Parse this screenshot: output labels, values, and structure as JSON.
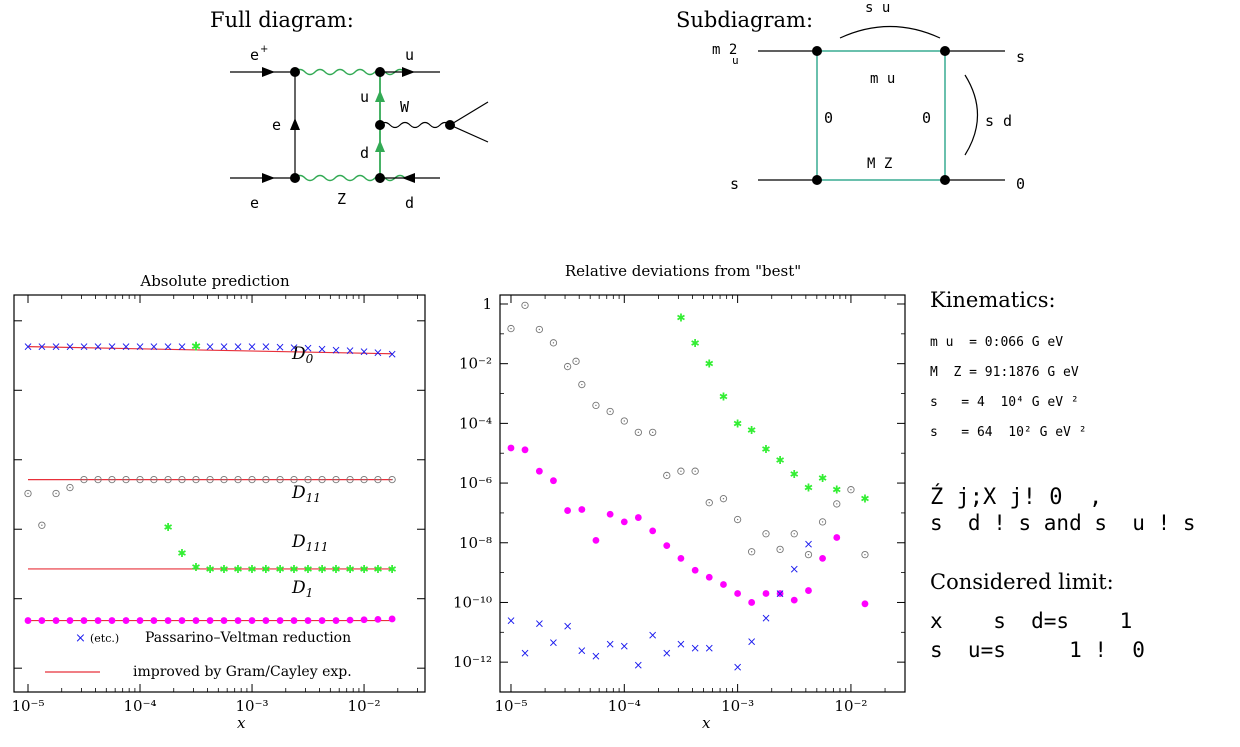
{
  "colors": {
    "green": "#33aa55",
    "magenta": "#ff00ff",
    "blue": "#1a1aee",
    "red": "#e8303a",
    "grey": "#777777",
    "lime": "#33ee33",
    "box": "#2aa58a"
  },
  "full_diagram": {
    "title": "Full diagram:",
    "labels": {
      "e_plus": "e",
      "e_plus_sup": "+",
      "u_top": "u",
      "u_mid": "u",
      "W": "W",
      "e_mid": "e",
      "d_mid": "d",
      "e_bot": "e",
      "Z": "Z",
      "d_bot": "d"
    }
  },
  "sub_diagram": {
    "title": "Subdiagram:",
    "labels": {
      "s_u_top": "s  u",
      "m_u2": "m  2",
      "m_u2_sub": "u",
      "s_right": "s",
      "m_u": "m  u",
      "zero_left": "0",
      "zero_right": "0",
      "s_d": "s  d",
      "M_Z": "M  Z",
      "s_left_bottom": "s",
      "zero_bottom": "0"
    }
  },
  "kinematics": {
    "title": "Kinematics:",
    "lines": [
      "m u  = 0:066 G eV",
      "M  Z = 91:1876 G eV",
      "s   = 4  10⁴ G eV ²",
      "s   = 64  10² G eV ²"
    ],
    "limit_line1": "Ź j;X j! 0  ,",
    "limit_line2": "s  d ! s and s  u ! s"
  },
  "considered_limit": {
    "title": "Considered limit:",
    "line1": "x    s  d=s    1",
    "line2": "s  u=s     1 !  0"
  },
  "chart_data": [
    {
      "type": "scatter",
      "title": "Absolute prediction",
      "xlabel": "x",
      "ylabel": "",
      "xscale": "log",
      "xlim": [
        7.5e-06,
        0.035
      ],
      "xticks": [
        "10⁻⁵",
        "10⁻⁴",
        "10⁻³",
        "10⁻²"
      ],
      "yticks_labeled": false,
      "curve_labels": [
        "D0",
        "D11",
        "D111",
        "D1"
      ],
      "legend": {
        "placement": "bottom",
        "marker_label": "(etc.)",
        "entries": [
          "Passarino–Veltman reduction",
          "improved by Gram/Cayley exp."
        ]
      },
      "curves": [
        {
          "name": "D0",
          "level": 0.87,
          "points": [
            [
              1e-05,
              0.87
            ],
            [
              1.33e-05,
              0.87
            ],
            [
              1.78e-05,
              0.87
            ],
            [
              2.37e-05,
              0.87
            ],
            [
              3.16e-05,
              0.87
            ],
            [
              4.22e-05,
              0.87
            ],
            [
              5.62e-05,
              0.87
            ],
            [
              7.5e-05,
              0.87
            ],
            [
              0.0001,
              0.87
            ],
            [
              0.000133,
              0.87
            ],
            [
              0.000178,
              0.87
            ],
            [
              0.000237,
              0.87
            ],
            [
              0.000316,
              0.87
            ],
            [
              0.000422,
              0.87
            ],
            [
              0.000562,
              0.87
            ],
            [
              0.00075,
              0.87
            ],
            [
              0.001,
              0.87
            ],
            [
              0.00133,
              0.87
            ],
            [
              0.00178,
              0.869
            ],
            [
              0.00237,
              0.868
            ],
            [
              0.00316,
              0.866
            ],
            [
              0.00422,
              0.864
            ],
            [
              0.00562,
              0.862
            ],
            [
              0.0075,
              0.86
            ],
            [
              0.01,
              0.858
            ],
            [
              0.0133,
              0.855
            ],
            [
              0.0178,
              0.852
            ]
          ]
        },
        {
          "name": "D11",
          "level": 0.535,
          "points": [
            [
              1e-05,
              0.5
            ],
            [
              1.33e-05,
              0.42
            ],
            [
              1.78e-05,
              0.5
            ],
            [
              2.37e-05,
              0.515
            ],
            [
              3.16e-05,
              0.535
            ],
            [
              4.22e-05,
              0.535
            ],
            [
              5.62e-05,
              0.535
            ],
            [
              7.5e-05,
              0.535
            ],
            [
              0.0001,
              0.535
            ],
            [
              0.000133,
              0.535
            ],
            [
              0.000178,
              0.535
            ],
            [
              0.000237,
              0.535
            ],
            [
              0.000316,
              0.535
            ],
            [
              0.000422,
              0.535
            ],
            [
              0.000562,
              0.535
            ],
            [
              0.00075,
              0.535
            ],
            [
              0.001,
              0.535
            ],
            [
              0.00133,
              0.535
            ],
            [
              0.00178,
              0.535
            ],
            [
              0.00237,
              0.535
            ],
            [
              0.00316,
              0.535
            ],
            [
              0.00422,
              0.535
            ],
            [
              0.00562,
              0.535
            ],
            [
              0.0075,
              0.535
            ],
            [
              0.01,
              0.535
            ],
            [
              0.0133,
              0.535
            ],
            [
              0.0178,
              0.535
            ]
          ]
        },
        {
          "name": "D111",
          "level": 0.31,
          "points": [
            [
              0.000178,
              0.415
            ],
            [
              0.000237,
              0.35
            ],
            [
              0.000316,
              0.315
            ],
            [
              0.000422,
              0.31
            ],
            [
              0.000562,
              0.31
            ],
            [
              0.00075,
              0.31
            ],
            [
              0.001,
              0.31
            ],
            [
              0.00133,
              0.31
            ],
            [
              0.00178,
              0.31
            ],
            [
              0.00237,
              0.31
            ],
            [
              0.00316,
              0.31
            ],
            [
              0.00422,
              0.31
            ],
            [
              0.00562,
              0.31
            ],
            [
              0.0075,
              0.31
            ],
            [
              0.01,
              0.31
            ],
            [
              0.0133,
              0.31
            ],
            [
              0.0178,
              0.31
            ]
          ]
        },
        {
          "name": "D1",
          "level": 0.18,
          "points": [
            [
              1e-05,
              0.18
            ],
            [
              1.33e-05,
              0.18
            ],
            [
              1.78e-05,
              0.18
            ],
            [
              2.37e-05,
              0.18
            ],
            [
              3.16e-05,
              0.18
            ],
            [
              4.22e-05,
              0.18
            ],
            [
              5.62e-05,
              0.18
            ],
            [
              7.5e-05,
              0.18
            ],
            [
              0.0001,
              0.18
            ],
            [
              0.000133,
              0.18
            ],
            [
              0.000178,
              0.18
            ],
            [
              0.000237,
              0.18
            ],
            [
              0.000316,
              0.18
            ],
            [
              0.000422,
              0.18
            ],
            [
              0.000562,
              0.18
            ],
            [
              0.00075,
              0.18
            ],
            [
              0.001,
              0.18
            ],
            [
              0.00133,
              0.18
            ],
            [
              0.00178,
              0.18
            ],
            [
              0.00237,
              0.18
            ],
            [
              0.00316,
              0.18
            ],
            [
              0.00422,
              0.18
            ],
            [
              0.00562,
              0.18
            ],
            [
              0.0075,
              0.181
            ],
            [
              0.01,
              0.182
            ],
            [
              0.0133,
              0.183
            ],
            [
              0.0178,
              0.184
            ]
          ]
        }
      ]
    },
    {
      "type": "scatter",
      "title": "Relative deviations from \"best\"",
      "xlabel": "x",
      "ylabel": "",
      "xscale": "log",
      "yscale": "log",
      "xlim": [
        8e-06,
        0.03
      ],
      "ylim": [
        1e-13,
        2
      ],
      "xticks": [
        "10⁻⁵",
        "10⁻⁴",
        "10⁻³",
        "10⁻²"
      ],
      "yticks": [
        "1",
        "10⁻²",
        "10⁻⁴",
        "10⁻⁶",
        "10⁻⁸",
        "10⁻¹⁰",
        "10⁻¹²"
      ],
      "series": [
        {
          "color": "grey",
          "marker": "circle-dot",
          "points": [
            [
              1e-05,
              0.15
            ],
            [
              1.33e-05,
              0.9
            ],
            [
              1.78e-05,
              0.14
            ],
            [
              2.37e-05,
              0.05
            ],
            [
              3.16e-05,
              0.008
            ],
            [
              3.75e-05,
              0.012
            ],
            [
              4.22e-05,
              0.002
            ],
            [
              5.62e-05,
              0.0004
            ],
            [
              7.5e-05,
              0.00025
            ],
            [
              0.0001,
              0.00012
            ],
            [
              0.000133,
              5e-05
            ],
            [
              0.000178,
              5e-05
            ],
            [
              0.000237,
              1.8e-06
            ],
            [
              0.000316,
              2.5e-06
            ],
            [
              0.000422,
              2.5e-06
            ],
            [
              0.000562,
              2.2e-07
            ],
            [
              0.00075,
              3e-07
            ],
            [
              0.001,
              6e-08
            ],
            [
              0.00133,
              5e-09
            ],
            [
              0.00178,
              2e-08
            ],
            [
              0.00237,
              6e-09
            ],
            [
              0.00316,
              2e-08
            ],
            [
              0.00422,
              4e-09
            ],
            [
              0.00562,
              5e-08
            ],
            [
              0.0075,
              2e-07
            ],
            [
              0.01,
              6e-07
            ],
            [
              0.0133,
              4e-09
            ]
          ]
        },
        {
          "color": "lime",
          "marker": "star",
          "points": [
            [
              0.000316,
              0.35
            ],
            [
              0.000422,
              0.05
            ],
            [
              0.000562,
              0.01
            ],
            [
              0.00075,
              0.0008
            ],
            [
              0.001,
              0.0001
            ],
            [
              0.00133,
              6e-05
            ],
            [
              0.00178,
              1.4e-05
            ],
            [
              0.00237,
              6e-06
            ],
            [
              0.00316,
              2e-06
            ],
            [
              0.00422,
              7e-07
            ],
            [
              0.00562,
              1.5e-06
            ],
            [
              0.0075,
              6e-07
            ],
            [
              0.0133,
              3e-07
            ]
          ]
        },
        {
          "color": "magenta",
          "marker": "dot",
          "points": [
            [
              1e-05,
              1.5e-05
            ],
            [
              1.33e-05,
              1.3e-05
            ],
            [
              1.78e-05,
              2.5e-06
            ],
            [
              2.37e-05,
              1.2e-06
            ],
            [
              3.16e-05,
              1.2e-07
            ],
            [
              4.22e-05,
              1.3e-07
            ],
            [
              5.62e-05,
              1.2e-08
            ],
            [
              7.5e-05,
              9e-08
            ],
            [
              0.0001,
              5e-08
            ],
            [
              0.000133,
              7e-08
            ],
            [
              0.000178,
              2.5e-08
            ],
            [
              0.000237,
              8e-09
            ],
            [
              0.000316,
              3e-09
            ],
            [
              0.000422,
              1.2e-09
            ],
            [
              0.000562,
              7e-10
            ],
            [
              0.00075,
              4e-10
            ],
            [
              0.001,
              2e-10
            ],
            [
              0.00133,
              1e-10
            ],
            [
              0.00178,
              2e-10
            ],
            [
              0.00237,
              2e-10
            ],
            [
              0.00316,
              1.2e-10
            ],
            [
              0.00422,
              2.5e-10
            ],
            [
              0.00562,
              3e-09
            ],
            [
              0.0075,
              1.5e-08
            ],
            [
              0.0133,
              9e-11
            ]
          ]
        },
        {
          "color": "blue",
          "marker": "x",
          "points": [
            [
              1e-05,
              2.5e-11
            ],
            [
              1.33e-05,
              2e-12
            ],
            [
              1.78e-05,
              2e-11
            ],
            [
              2.37e-05,
              4.5e-12
            ],
            [
              3.16e-05,
              1.6e-11
            ],
            [
              4.22e-05,
              2.5e-12
            ],
            [
              5.62e-05,
              1.6e-12
            ],
            [
              7.5e-05,
              4e-12
            ],
            [
              0.0001,
              3.5e-12
            ],
            [
              0.000133,
              8e-13
            ],
            [
              0.000178,
              8e-12
            ],
            [
              0.000237,
              2e-12
            ],
            [
              0.000316,
              4e-12
            ],
            [
              0.000422,
              3e-12
            ],
            [
              0.000562,
              3e-12
            ],
            [
              0.001,
              7e-13
            ],
            [
              0.00133,
              5e-12
            ],
            [
              0.00178,
              3e-11
            ],
            [
              0.00237,
              2e-10
            ],
            [
              0.00316,
              1.3e-09
            ],
            [
              0.00422,
              9e-09
            ]
          ]
        }
      ]
    }
  ]
}
